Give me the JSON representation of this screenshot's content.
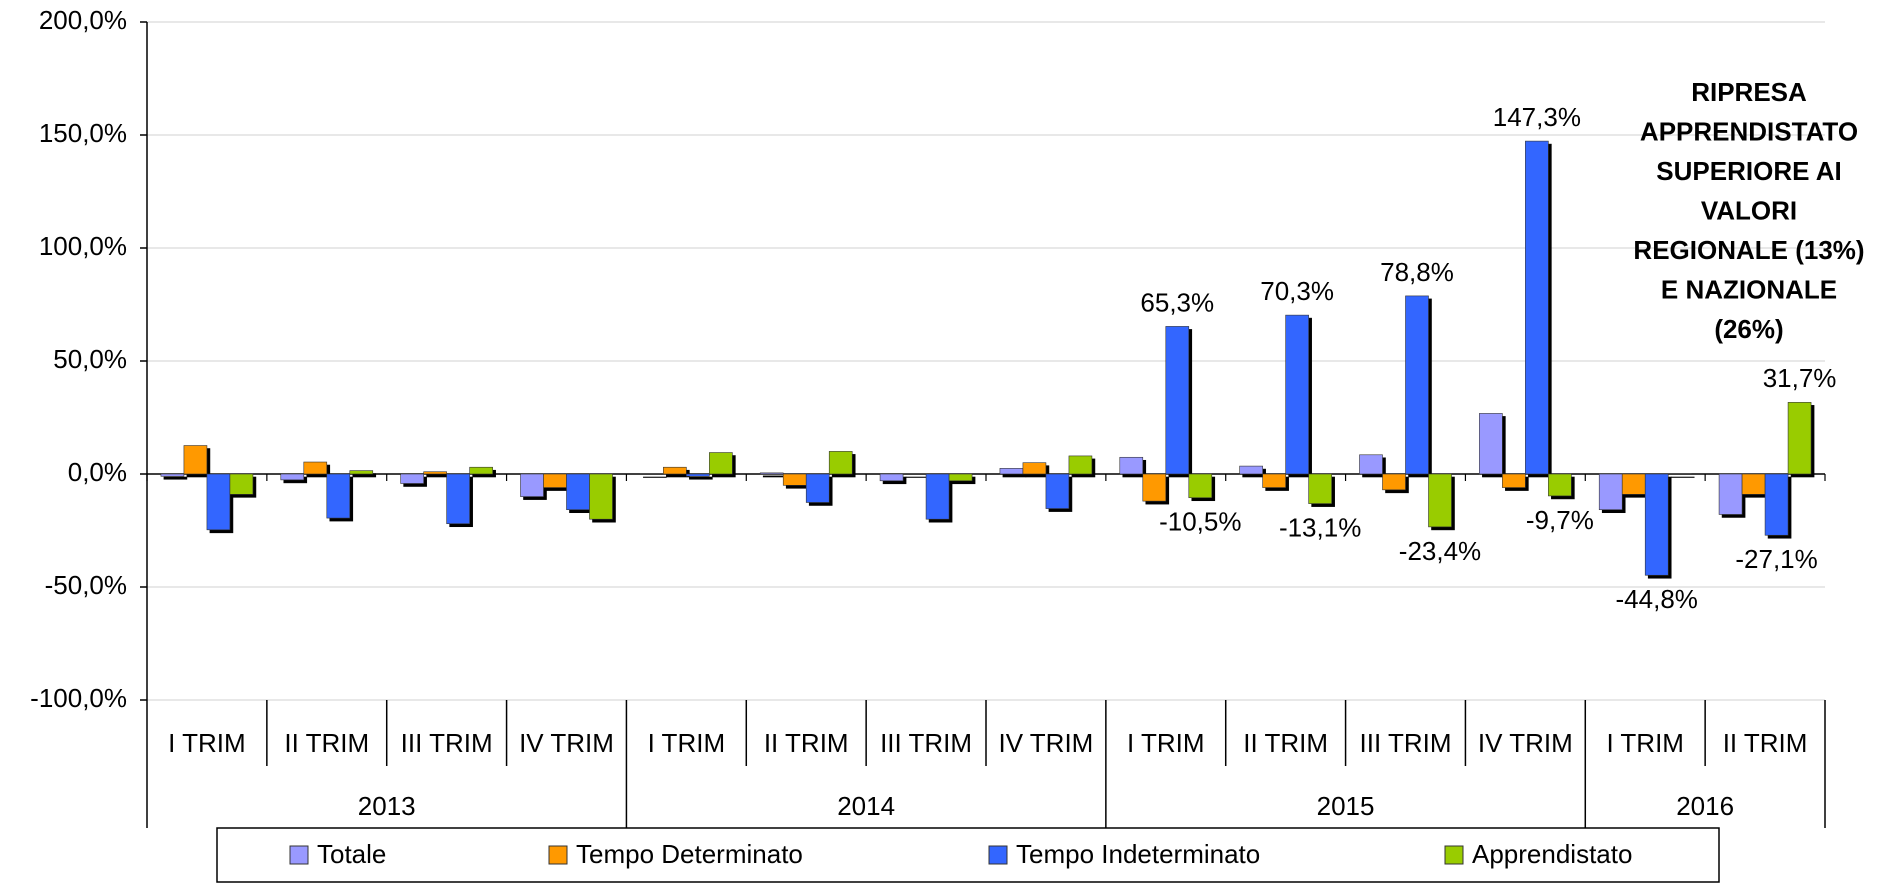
{
  "chart_data": {
    "type": "bar",
    "annotation": [
      "RIPRESA",
      "APPRENDISTATO",
      "SUPERIORE AI",
      "VALORI",
      "REGIONALE (13%)",
      "E NAZIONALE",
      "(26%)"
    ],
    "categories": [
      "I TRIM",
      "II TRIM",
      "III TRIM",
      "IV TRIM",
      "I TRIM",
      "II TRIM",
      "III TRIM",
      "IV TRIM",
      "I TRIM",
      "II TRIM",
      "III TRIM",
      "IV TRIM",
      "I TRIM",
      "II TRIM"
    ],
    "category_groups": [
      {
        "name": "2013",
        "span": 4
      },
      {
        "name": "2014",
        "span": 4
      },
      {
        "name": "2015",
        "span": 4
      },
      {
        "name": "2016",
        "span": 2
      }
    ],
    "series": [
      {
        "name": "Totale",
        "color": "#9999ff",
        "values": [
          -1,
          -2.6,
          -4.2,
          -10,
          0,
          0.5,
          -3,
          2.5,
          7.4,
          3.5,
          8.5,
          26.8,
          -15.8,
          -17.9
        ]
      },
      {
        "name": "Tempo Determinato",
        "color": "#ff9900",
        "values": [
          12.6,
          5.3,
          1,
          -6,
          3,
          -5,
          0,
          5,
          -12,
          -6,
          -7,
          -6,
          -9,
          -9
        ]
      },
      {
        "name": "Tempo Indeterminato",
        "color": "#3366ff",
        "values": [
          -24.7,
          -19.5,
          -22,
          -15.8,
          -1,
          -12.6,
          -20,
          -15.3,
          65.3,
          70.3,
          78.8,
          147.3,
          -44.8,
          -27.1
        ],
        "value_labels": [
          null,
          null,
          null,
          null,
          null,
          null,
          null,
          null,
          "65,3%",
          "70,3%",
          "78,8%",
          "147,3%",
          "-44,8%",
          "-27,1%"
        ]
      },
      {
        "name": "Apprendistato",
        "color": "#99cc00",
        "values": [
          -9,
          1.5,
          3,
          -20,
          9.5,
          10,
          -3,
          8,
          -10.5,
          -13.1,
          -23.4,
          -9.7,
          0,
          31.7
        ],
        "value_labels": [
          null,
          null,
          null,
          null,
          null,
          null,
          null,
          null,
          "-10,5%",
          "-13,1%",
          "-23,4%",
          "-9,7%",
          null,
          "31,7%"
        ]
      }
    ],
    "ylim": [
      -100,
      200
    ],
    "yticks": [
      {
        "value": -100,
        "label": "-100,0%"
      },
      {
        "value": -50,
        "label": "-50,0%"
      },
      {
        "value": 0,
        "label": "0,0%"
      },
      {
        "value": 50,
        "label": "50,0%"
      },
      {
        "value": 100,
        "label": "100,0%"
      },
      {
        "value": 150,
        "label": "150,0%"
      },
      {
        "value": 200,
        "label": "200,0%"
      }
    ],
    "grid": true
  }
}
